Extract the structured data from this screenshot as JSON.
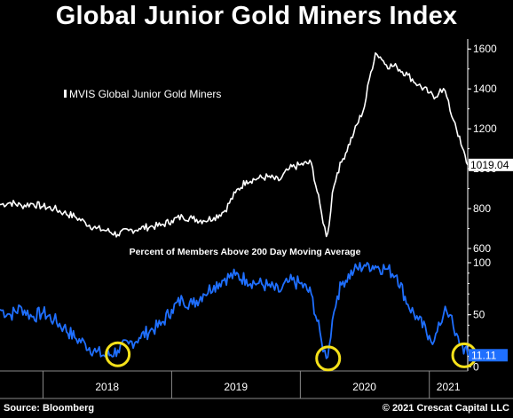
{
  "title": "Global Junior Gold Miners Index",
  "footer": {
    "source": "Source: Bloomberg",
    "copyright": "© 2021 Crescat Capital LLC"
  },
  "colors": {
    "price_line": "#ffffff",
    "percent_line": "#1f6fff",
    "percent_tag": "#1f6fff",
    "price_tag": "#ffffff",
    "highlight_circle": "#f5e11a",
    "axis": "#ffffff"
  },
  "chart_data": [
    {
      "type": "line",
      "legend": "MVIS Global Junior Gold Miners",
      "legend_position": "top-left",
      "y_axis_position": "right",
      "ylim": [
        560,
        1650
      ],
      "yticks": [
        "600",
        "800",
        "1000",
        "1200",
        "1400",
        "1600"
      ],
      "ytick_values": [
        600,
        800,
        1000,
        1200,
        1400,
        1600
      ],
      "last_value_label": "1019.04",
      "last_value": 1019.04,
      "x_range": [
        "2017-09-01",
        "2021-04-20"
      ],
      "series": [
        {
          "name": "MVIS Global Junior Gold Miners",
          "x": [
            "2017-09-01",
            "2017-10-01",
            "2017-11-01",
            "2017-12-01",
            "2018-01-01",
            "2018-02-01",
            "2018-03-01",
            "2018-04-01",
            "2018-05-01",
            "2018-06-01",
            "2018-07-01",
            "2018-08-01",
            "2018-09-01",
            "2018-10-01",
            "2018-11-01",
            "2018-12-01",
            "2019-01-01",
            "2019-02-01",
            "2019-03-01",
            "2019-04-01",
            "2019-05-01",
            "2019-06-01",
            "2019-07-01",
            "2019-08-01",
            "2019-09-01",
            "2019-10-01",
            "2019-11-01",
            "2019-12-01",
            "2020-01-01",
            "2020-02-01",
            "2020-03-01",
            "2020-03-15",
            "2020-03-23",
            "2020-04-01",
            "2020-04-15",
            "2020-05-01",
            "2020-06-01",
            "2020-07-01",
            "2020-07-15",
            "2020-08-01",
            "2020-08-15",
            "2020-09-01",
            "2020-10-01",
            "2020-11-01",
            "2020-12-01",
            "2021-01-01",
            "2021-01-15",
            "2021-02-01",
            "2021-02-15",
            "2021-03-01",
            "2021-03-15",
            "2021-04-01",
            "2021-04-20"
          ],
          "values": [
            820,
            830,
            815,
            825,
            810,
            800,
            780,
            760,
            730,
            700,
            690,
            670,
            690,
            700,
            710,
            715,
            740,
            760,
            750,
            740,
            755,
            790,
            880,
            940,
            950,
            960,
            940,
            1000,
            1020,
            1030,
            780,
            660,
            720,
            880,
            980,
            1050,
            1180,
            1310,
            1450,
            1580,
            1560,
            1520,
            1510,
            1470,
            1420,
            1380,
            1350,
            1400,
            1390,
            1290,
            1230,
            1120,
            1019
          ]
        }
      ]
    },
    {
      "type": "line",
      "title": "Percent of Members Above 200 Day Moving Average",
      "y_axis_position": "right",
      "ylim": [
        -4,
        106
      ],
      "yticks": [
        "0",
        "50",
        "100"
      ],
      "ytick_values": [
        0,
        50,
        100
      ],
      "last_value_label": "11.11",
      "last_value": 11.11,
      "x_range": [
        "2017-09-01",
        "2021-04-20"
      ],
      "series": [
        {
          "name": "Percent of Members Above 200 Day Moving Average",
          "x": [
            "2017-09-01",
            "2017-10-01",
            "2017-11-01",
            "2017-12-01",
            "2018-01-01",
            "2018-02-01",
            "2018-03-01",
            "2018-04-01",
            "2018-05-01",
            "2018-06-01",
            "2018-07-01",
            "2018-08-01",
            "2018-09-01",
            "2018-10-01",
            "2018-11-01",
            "2018-12-01",
            "2019-01-01",
            "2019-02-01",
            "2019-03-01",
            "2019-04-01",
            "2019-05-01",
            "2019-06-01",
            "2019-07-01",
            "2019-08-01",
            "2019-09-01",
            "2019-10-01",
            "2019-11-01",
            "2019-12-01",
            "2020-01-01",
            "2020-02-01",
            "2020-03-01",
            "2020-03-15",
            "2020-03-23",
            "2020-04-01",
            "2020-04-15",
            "2020-05-01",
            "2020-06-01",
            "2020-07-01",
            "2020-08-01",
            "2020-09-01",
            "2020-10-01",
            "2020-11-01",
            "2020-12-01",
            "2021-01-01",
            "2021-01-15",
            "2021-02-01",
            "2021-02-15",
            "2021-03-01",
            "2021-03-15",
            "2021-04-01",
            "2021-04-20"
          ],
          "values": [
            55,
            50,
            57,
            48,
            52,
            45,
            38,
            28,
            22,
            14,
            10,
            16,
            22,
            28,
            35,
            40,
            55,
            65,
            60,
            70,
            78,
            85,
            88,
            84,
            80,
            78,
            72,
            82,
            80,
            70,
            25,
            8,
            20,
            45,
            68,
            82,
            92,
            98,
            97,
            94,
            88,
            60,
            45,
            30,
            25,
            40,
            58,
            50,
            30,
            22,
            11.11
          ]
        }
      ],
      "highlights": [
        {
          "x": "2018-08-01",
          "y": 12
        },
        {
          "x": "2020-03-20",
          "y": 8
        },
        {
          "x": "2021-04-10",
          "y": 11
        }
      ]
    }
  ],
  "x_axis": {
    "year_labels": [
      "2018",
      "2019",
      "2020",
      "2021"
    ],
    "year_label_dates": [
      "2018-07-02",
      "2019-07-02",
      "2020-07-01",
      "2021-02-24"
    ],
    "year_boundaries": [
      "2018-01-01",
      "2019-01-01",
      "2020-01-01",
      "2021-01-01"
    ]
  }
}
